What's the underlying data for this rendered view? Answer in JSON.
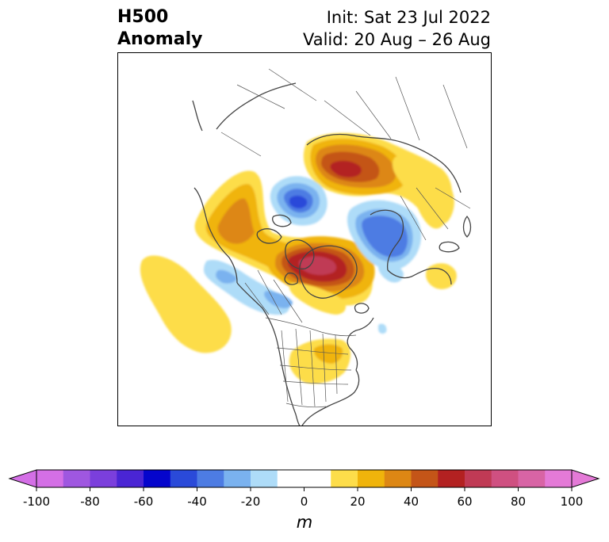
{
  "title": {
    "left_line1": "H500",
    "left_line2": "Anomaly",
    "right_line1": "Init: Sat 23 Jul 2022",
    "right_line2": "Valid: 20 Aug – 26 Aug"
  },
  "colorbar": {
    "unit": "m",
    "tick_labels": [
      "-100",
      "-80",
      "-60",
      "-40",
      "-20",
      "0",
      "20",
      "40",
      "60",
      "80",
      "100"
    ],
    "colors": [
      "#d46fe6",
      "#9f57e0",
      "#7b3fdc",
      "#4a25d4",
      "#0505cc",
      "#2a4ad9",
      "#4d7ce3",
      "#7ab2ef",
      "#aedcf8",
      "#ffffff",
      "#ffffff",
      "#fddd4a",
      "#f0b40b",
      "#dd8714",
      "#c45518",
      "#b32121",
      "#c03a55",
      "#cf5081",
      "#d864a5",
      "#e47ad7"
    ],
    "under_color": "#d46fe6",
    "over_color": "#e47ad7"
  },
  "map": {
    "projection": "north-polar-stereographic",
    "field": "500 hPa geopotential height anomaly",
    "colors": {
      "coast": "#444444",
      "frame": "#000000"
    }
  }
}
